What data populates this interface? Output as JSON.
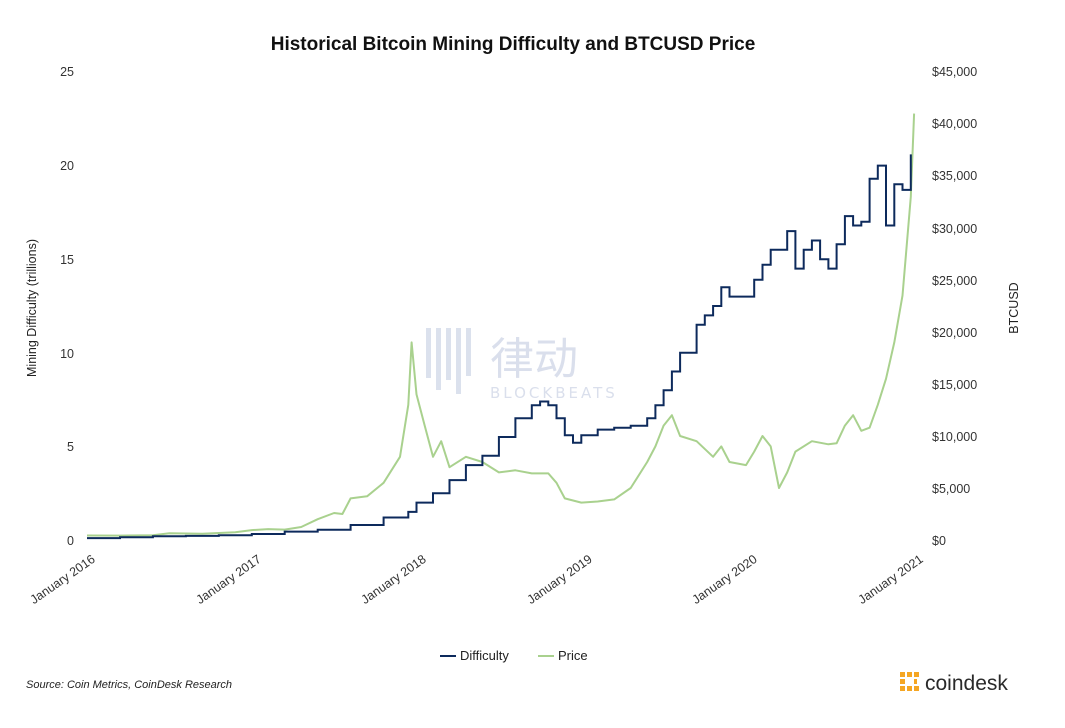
{
  "chart_data": {
    "type": "line",
    "title": "Historical Bitcoin Mining Difficulty and BTCUSD Price",
    "ylabel": "Mining Difficulty (trillions)",
    "y2label": "BTCUSD",
    "ylim": [
      0,
      25
    ],
    "y2lim": [
      0,
      45000
    ],
    "yticks": [
      "0",
      "5",
      "10",
      "15",
      "20",
      "25"
    ],
    "y2ticks": [
      "$0",
      "$5,000",
      "$10,000",
      "$15,000",
      "$20,000",
      "$25,000",
      "$30,000",
      "$35,000",
      "$40,000",
      "$45,000"
    ],
    "xticks": [
      "January 2016",
      "January 2017",
      "January 2018",
      "January 2019",
      "January 2020",
      "January 2021"
    ],
    "xlim": [
      2016.0,
      2021.05
    ],
    "legend_position": "bottom",
    "series": [
      {
        "name": "Difficulty",
        "color": "#0d2a5c",
        "axis": "left",
        "points": [
          [
            2016.0,
            0.1
          ],
          [
            2016.2,
            0.15
          ],
          [
            2016.4,
            0.2
          ],
          [
            2016.6,
            0.22
          ],
          [
            2016.8,
            0.25
          ],
          [
            2017.0,
            0.32
          ],
          [
            2017.2,
            0.45
          ],
          [
            2017.4,
            0.55
          ],
          [
            2017.6,
            0.8
          ],
          [
            2017.8,
            1.2
          ],
          [
            2017.95,
            1.5
          ],
          [
            2018.0,
            2.0
          ],
          [
            2018.1,
            2.5
          ],
          [
            2018.2,
            3.2
          ],
          [
            2018.3,
            4.0
          ],
          [
            2018.4,
            4.5
          ],
          [
            2018.5,
            5.5
          ],
          [
            2018.6,
            6.5
          ],
          [
            2018.7,
            7.2
          ],
          [
            2018.75,
            7.4
          ],
          [
            2018.8,
            7.2
          ],
          [
            2018.85,
            6.5
          ],
          [
            2018.9,
            5.6
          ],
          [
            2018.95,
            5.2
          ],
          [
            2019.0,
            5.6
          ],
          [
            2019.1,
            5.9
          ],
          [
            2019.2,
            6.0
          ],
          [
            2019.3,
            6.1
          ],
          [
            2019.4,
            6.5
          ],
          [
            2019.45,
            7.2
          ],
          [
            2019.5,
            8.0
          ],
          [
            2019.55,
            9.0
          ],
          [
            2019.6,
            10.0
          ],
          [
            2019.7,
            11.5
          ],
          [
            2019.75,
            12.0
          ],
          [
            2019.8,
            12.5
          ],
          [
            2019.85,
            13.5
          ],
          [
            2019.9,
            13.0
          ],
          [
            2020.0,
            13.0
          ],
          [
            2020.05,
            13.9
          ],
          [
            2020.1,
            14.7
          ],
          [
            2020.15,
            15.5
          ],
          [
            2020.2,
            15.5
          ],
          [
            2020.25,
            16.5
          ],
          [
            2020.3,
            14.5
          ],
          [
            2020.35,
            15.5
          ],
          [
            2020.4,
            16.0
          ],
          [
            2020.45,
            15.0
          ],
          [
            2020.5,
            14.5
          ],
          [
            2020.55,
            15.8
          ],
          [
            2020.6,
            17.3
          ],
          [
            2020.65,
            16.8
          ],
          [
            2020.7,
            17.0
          ],
          [
            2020.75,
            19.3
          ],
          [
            2020.8,
            20.0
          ],
          [
            2020.85,
            16.8
          ],
          [
            2020.9,
            19.0
          ],
          [
            2020.95,
            18.7
          ],
          [
            2021.0,
            20.6
          ]
        ]
      },
      {
        "name": "Price",
        "color": "#a9d18e",
        "axis": "right",
        "points": [
          [
            2016.0,
            430
          ],
          [
            2016.2,
            420
          ],
          [
            2016.4,
            450
          ],
          [
            2016.5,
            650
          ],
          [
            2016.7,
            610
          ],
          [
            2016.9,
            740
          ],
          [
            2017.0,
            950
          ],
          [
            2017.1,
            1050
          ],
          [
            2017.2,
            1000
          ],
          [
            2017.3,
            1250
          ],
          [
            2017.4,
            2000
          ],
          [
            2017.5,
            2600
          ],
          [
            2017.55,
            2500
          ],
          [
            2017.6,
            4000
          ],
          [
            2017.7,
            4200
          ],
          [
            2017.8,
            5500
          ],
          [
            2017.9,
            8000
          ],
          [
            2017.95,
            13000
          ],
          [
            2017.97,
            19000
          ],
          [
            2018.0,
            14000
          ],
          [
            2018.05,
            11000
          ],
          [
            2018.1,
            8000
          ],
          [
            2018.15,
            9500
          ],
          [
            2018.2,
            7000
          ],
          [
            2018.3,
            8000
          ],
          [
            2018.4,
            7500
          ],
          [
            2018.5,
            6500
          ],
          [
            2018.6,
            6700
          ],
          [
            2018.7,
            6400
          ],
          [
            2018.8,
            6400
          ],
          [
            2018.85,
            5500
          ],
          [
            2018.9,
            4000
          ],
          [
            2019.0,
            3600
          ],
          [
            2019.1,
            3700
          ],
          [
            2019.2,
            3900
          ],
          [
            2019.3,
            5000
          ],
          [
            2019.4,
            7500
          ],
          [
            2019.45,
            9000
          ],
          [
            2019.5,
            11000
          ],
          [
            2019.55,
            12000
          ],
          [
            2019.6,
            10000
          ],
          [
            2019.7,
            9500
          ],
          [
            2019.8,
            8000
          ],
          [
            2019.85,
            9000
          ],
          [
            2019.9,
            7500
          ],
          [
            2020.0,
            7200
          ],
          [
            2020.05,
            8500
          ],
          [
            2020.1,
            10000
          ],
          [
            2020.15,
            9000
          ],
          [
            2020.2,
            5000
          ],
          [
            2020.25,
            6500
          ],
          [
            2020.3,
            8500
          ],
          [
            2020.4,
            9500
          ],
          [
            2020.5,
            9200
          ],
          [
            2020.55,
            9300
          ],
          [
            2020.6,
            11000
          ],
          [
            2020.65,
            12000
          ],
          [
            2020.7,
            10500
          ],
          [
            2020.75,
            10800
          ],
          [
            2020.8,
            13000
          ],
          [
            2020.85,
            15500
          ],
          [
            2020.9,
            19000
          ],
          [
            2020.95,
            23500
          ],
          [
            2021.0,
            33000
          ],
          [
            2021.02,
            41000
          ]
        ]
      }
    ]
  },
  "legend": {
    "items": [
      "Difficulty",
      "Price"
    ]
  },
  "footer": {
    "source": "Source: Coin Metrics, CoinDesk Research"
  },
  "brand": {
    "name": "coindesk",
    "color": "#f5a623"
  },
  "watermark": {
    "chinese": "律动",
    "latin": "BLOCKBEATS"
  }
}
